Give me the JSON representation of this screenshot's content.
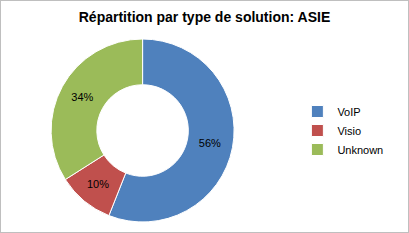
{
  "chart_data": {
    "type": "donut",
    "title": "Répartition par type de solution: ASIE",
    "categories": [
      "VoIP",
      "Visio",
      "Unknown"
    ],
    "values": [
      56,
      10,
      34
    ],
    "value_labels": [
      "56%",
      "10%",
      "34%"
    ],
    "colors": [
      "#4f81bd",
      "#c0504d",
      "#9bbb59"
    ],
    "data_labels": true,
    "legend": "right"
  }
}
